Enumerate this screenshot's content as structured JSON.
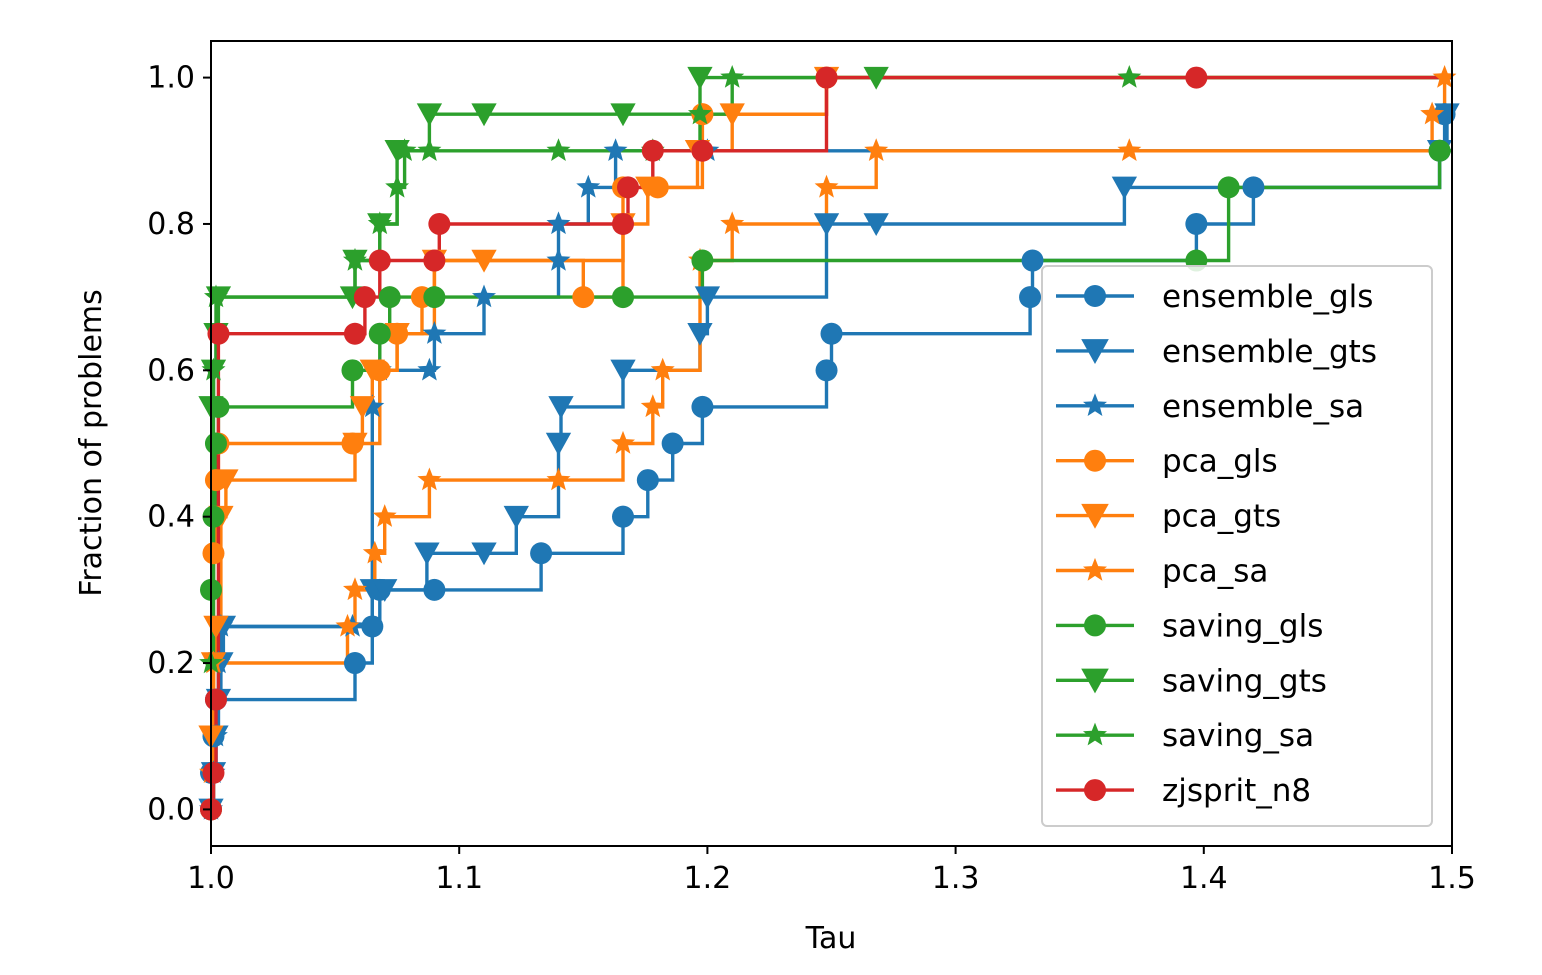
{
  "chart_data": {
    "type": "line",
    "title": "",
    "xlabel": "Tau",
    "ylabel": "Fraction of problems",
    "xlim": [
      1.0,
      1.5
    ],
    "ylim": [
      -0.05,
      1.05
    ],
    "xticks": [
      1.0,
      1.1,
      1.2,
      1.3,
      1.4,
      1.5
    ],
    "xtick_labels": [
      "1.0",
      "1.1",
      "1.2",
      "1.3",
      "1.4",
      "1.5"
    ],
    "yticks": [
      0.0,
      0.2,
      0.4,
      0.6,
      0.8,
      1.0
    ],
    "ytick_labels": [
      "0.0",
      "0.2",
      "0.4",
      "0.6",
      "0.8",
      "1.0"
    ],
    "grid": false,
    "legend_position": "center-right",
    "drawstyle": "steps-post",
    "series": [
      {
        "name": "ensemble_gls",
        "color": "#1f77b4",
        "marker": "circle",
        "points": [
          [
            1.0,
            0.0
          ],
          [
            1.0,
            0.05
          ],
          [
            1.001,
            0.1
          ],
          [
            1.002,
            0.15
          ],
          [
            1.058,
            0.2
          ],
          [
            1.065,
            0.25
          ],
          [
            1.068,
            0.3
          ],
          [
            1.09,
            0.3
          ],
          [
            1.133,
            0.35
          ],
          [
            1.166,
            0.4
          ],
          [
            1.176,
            0.45
          ],
          [
            1.186,
            0.5
          ],
          [
            1.198,
            0.55
          ],
          [
            1.248,
            0.6
          ],
          [
            1.25,
            0.65
          ],
          [
            1.33,
            0.7
          ],
          [
            1.331,
            0.75
          ],
          [
            1.397,
            0.8
          ],
          [
            1.42,
            0.85
          ],
          [
            1.495,
            0.9
          ],
          [
            1.497,
            0.95
          ],
          [
            1.5,
            0.95
          ]
        ]
      },
      {
        "name": "ensemble_gts",
        "color": "#1f77b4",
        "marker": "triangle-down",
        "points": [
          [
            1.0,
            0.0
          ],
          [
            1.001,
            0.05
          ],
          [
            1.002,
            0.1
          ],
          [
            1.003,
            0.15
          ],
          [
            1.004,
            0.2
          ],
          [
            1.005,
            0.25
          ],
          [
            1.065,
            0.3
          ],
          [
            1.07,
            0.3
          ],
          [
            1.087,
            0.35
          ],
          [
            1.11,
            0.35
          ],
          [
            1.123,
            0.4
          ],
          [
            1.14,
            0.5
          ],
          [
            1.141,
            0.55
          ],
          [
            1.166,
            0.6
          ],
          [
            1.197,
            0.65
          ],
          [
            1.2,
            0.7
          ],
          [
            1.248,
            0.8
          ],
          [
            1.268,
            0.8
          ],
          [
            1.368,
            0.85
          ],
          [
            1.495,
            0.9
          ],
          [
            1.498,
            0.95
          ],
          [
            1.5,
            0.95
          ]
        ]
      },
      {
        "name": "ensemble_sa",
        "color": "#1f77b4",
        "marker": "star",
        "points": [
          [
            1.0,
            0.0
          ],
          [
            1.001,
            0.05
          ],
          [
            1.002,
            0.1
          ],
          [
            1.003,
            0.2
          ],
          [
            1.004,
            0.25
          ],
          [
            1.057,
            0.25
          ],
          [
            1.065,
            0.55
          ],
          [
            1.068,
            0.6
          ],
          [
            1.088,
            0.6
          ],
          [
            1.09,
            0.65
          ],
          [
            1.11,
            0.7
          ],
          [
            1.14,
            0.75
          ],
          [
            1.14,
            0.8
          ],
          [
            1.152,
            0.85
          ],
          [
            1.163,
            0.9
          ],
          [
            1.2,
            0.9
          ],
          [
            1.5,
            0.9
          ]
        ]
      },
      {
        "name": "pca_gls",
        "color": "#ff7f0e",
        "marker": "circle",
        "points": [
          [
            1.0,
            0.0
          ],
          [
            1.001,
            0.35
          ],
          [
            1.002,
            0.45
          ],
          [
            1.003,
            0.5
          ],
          [
            1.057,
            0.5
          ],
          [
            1.068,
            0.6
          ],
          [
            1.075,
            0.65
          ],
          [
            1.085,
            0.7
          ],
          [
            1.09,
            0.75
          ],
          [
            1.15,
            0.7
          ],
          [
            1.166,
            0.85
          ],
          [
            1.18,
            0.85
          ],
          [
            1.198,
            0.95
          ],
          [
            1.248,
            1.0
          ],
          [
            1.5,
            1.0
          ]
        ]
      },
      {
        "name": "pca_gts",
        "color": "#ff7f0e",
        "marker": "triangle-down",
        "points": [
          [
            1.0,
            0.1
          ],
          [
            1.001,
            0.2
          ],
          [
            1.002,
            0.25
          ],
          [
            1.004,
            0.4
          ],
          [
            1.006,
            0.45
          ],
          [
            1.058,
            0.5
          ],
          [
            1.061,
            0.55
          ],
          [
            1.065,
            0.6
          ],
          [
            1.075,
            0.65
          ],
          [
            1.09,
            0.75
          ],
          [
            1.11,
            0.75
          ],
          [
            1.166,
            0.8
          ],
          [
            1.176,
            0.85
          ],
          [
            1.196,
            0.9
          ],
          [
            1.21,
            0.95
          ],
          [
            1.248,
            1.0
          ],
          [
            1.5,
            1.0
          ]
        ]
      },
      {
        "name": "pca_sa",
        "color": "#ff7f0e",
        "marker": "star",
        "points": [
          [
            1.0,
            0.05
          ],
          [
            1.001,
            0.2
          ],
          [
            1.055,
            0.25
          ],
          [
            1.058,
            0.3
          ],
          [
            1.066,
            0.35
          ],
          [
            1.07,
            0.4
          ],
          [
            1.088,
            0.45
          ],
          [
            1.14,
            0.45
          ],
          [
            1.166,
            0.5
          ],
          [
            1.178,
            0.55
          ],
          [
            1.182,
            0.6
          ],
          [
            1.197,
            0.75
          ],
          [
            1.21,
            0.8
          ],
          [
            1.248,
            0.85
          ],
          [
            1.268,
            0.9
          ],
          [
            1.37,
            0.9
          ],
          [
            1.492,
            0.95
          ],
          [
            1.497,
            1.0
          ],
          [
            1.5,
            1.0
          ]
        ]
      },
      {
        "name": "saving_gls",
        "color": "#2ca02c",
        "marker": "circle",
        "points": [
          [
            1.0,
            0.3
          ],
          [
            1.001,
            0.4
          ],
          [
            1.002,
            0.5
          ],
          [
            1.003,
            0.55
          ],
          [
            1.057,
            0.6
          ],
          [
            1.068,
            0.65
          ],
          [
            1.072,
            0.7
          ],
          [
            1.09,
            0.7
          ],
          [
            1.166,
            0.7
          ],
          [
            1.198,
            0.75
          ],
          [
            1.397,
            0.75
          ],
          [
            1.41,
            0.85
          ],
          [
            1.495,
            0.9
          ],
          [
            1.5,
            0.9
          ]
        ]
      },
      {
        "name": "saving_gts",
        "color": "#2ca02c",
        "marker": "triangle-down",
        "points": [
          [
            1.0,
            0.55
          ],
          [
            1.001,
            0.6
          ],
          [
            1.002,
            0.65
          ],
          [
            1.003,
            0.7
          ],
          [
            1.057,
            0.7
          ],
          [
            1.058,
            0.75
          ],
          [
            1.068,
            0.8
          ],
          [
            1.075,
            0.9
          ],
          [
            1.088,
            0.95
          ],
          [
            1.11,
            0.95
          ],
          [
            1.166,
            0.95
          ],
          [
            1.197,
            1.0
          ],
          [
            1.268,
            1.0
          ],
          [
            1.5,
            1.0
          ]
        ]
      },
      {
        "name": "saving_sa",
        "color": "#2ca02c",
        "marker": "star",
        "points": [
          [
            1.0,
            0.2
          ],
          [
            1.001,
            0.6
          ],
          [
            1.002,
            0.7
          ],
          [
            1.058,
            0.75
          ],
          [
            1.068,
            0.8
          ],
          [
            1.075,
            0.85
          ],
          [
            1.078,
            0.9
          ],
          [
            1.088,
            0.9
          ],
          [
            1.14,
            0.9
          ],
          [
            1.178,
            0.9
          ],
          [
            1.197,
            0.95
          ],
          [
            1.21,
            1.0
          ],
          [
            1.37,
            1.0
          ],
          [
            1.5,
            1.0
          ]
        ]
      },
      {
        "name": "zjsprit_n8",
        "color": "#d62728",
        "marker": "circle",
        "points": [
          [
            1.0,
            0.0
          ],
          [
            1.001,
            0.05
          ],
          [
            1.002,
            0.15
          ],
          [
            1.003,
            0.65
          ],
          [
            1.058,
            0.65
          ],
          [
            1.062,
            0.7
          ],
          [
            1.068,
            0.75
          ],
          [
            1.09,
            0.75
          ],
          [
            1.092,
            0.8
          ],
          [
            1.166,
            0.8
          ],
          [
            1.168,
            0.85
          ],
          [
            1.178,
            0.9
          ],
          [
            1.198,
            0.9
          ],
          [
            1.248,
            1.0
          ],
          [
            1.397,
            1.0
          ],
          [
            1.5,
            1.0
          ]
        ]
      }
    ]
  }
}
